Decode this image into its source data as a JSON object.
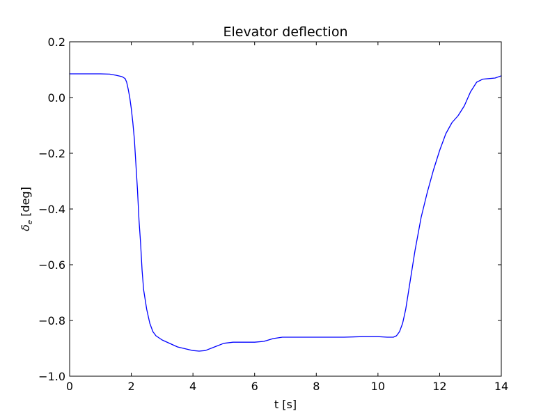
{
  "chart_data": {
    "type": "line",
    "title": "Elevator deflection",
    "xlabel": "t [s]",
    "ylabel_symbol": "δ",
    "ylabel_subscript": "e",
    "ylabel_unit": " [deg]",
    "xlim": [
      0,
      14
    ],
    "ylim": [
      -1.0,
      0.2
    ],
    "grid": false,
    "legend": "none",
    "x_ticks": [
      0,
      2,
      4,
      6,
      8,
      10,
      12,
      14
    ],
    "x_tick_labels": [
      "0",
      "2",
      "4",
      "6",
      "8",
      "10",
      "12",
      "14"
    ],
    "y_ticks": [
      -1.0,
      -0.8,
      -0.6,
      -0.4,
      -0.2,
      0.0,
      0.2
    ],
    "y_tick_labels": [
      "−1.0",
      "−0.8",
      "−0.6",
      "−0.4",
      "−0.2",
      "0.0",
      "0.2"
    ],
    "series": [
      {
        "color": "#0000ff",
        "x": [
          0,
          0.5,
          1.0,
          1.3,
          1.5,
          1.7,
          1.8,
          1.85,
          1.9,
          1.95,
          2.0,
          2.05,
          2.1,
          2.15,
          2.2,
          2.25,
          2.3,
          2.35,
          2.4,
          2.5,
          2.6,
          2.7,
          2.8,
          3.0,
          3.5,
          4.0,
          4.2,
          4.4,
          4.7,
          5.0,
          5.3,
          5.6,
          6.0,
          6.3,
          6.6,
          6.9,
          7.5,
          8.0,
          8.9,
          9.5,
          10.0,
          10.3,
          10.5,
          10.6,
          10.7,
          10.8,
          10.9,
          11.0,
          11.1,
          11.2,
          11.4,
          11.6,
          11.8,
          12.0,
          12.2,
          12.4,
          12.6,
          12.8,
          12.9,
          13.0,
          13.2,
          13.4,
          13.6,
          13.8,
          14.0
        ],
        "y": [
          0.085,
          0.085,
          0.085,
          0.084,
          0.08,
          0.075,
          0.068,
          0.055,
          0.03,
          0.0,
          -0.04,
          -0.09,
          -0.15,
          -0.24,
          -0.33,
          -0.44,
          -0.52,
          -0.62,
          -0.69,
          -0.76,
          -0.81,
          -0.84,
          -0.855,
          -0.87,
          -0.895,
          -0.908,
          -0.91,
          -0.908,
          -0.895,
          -0.882,
          -0.878,
          -0.878,
          -0.878,
          -0.875,
          -0.865,
          -0.86,
          -0.86,
          -0.86,
          -0.86,
          -0.858,
          -0.858,
          -0.86,
          -0.86,
          -0.855,
          -0.84,
          -0.81,
          -0.76,
          -0.69,
          -0.62,
          -0.55,
          -0.43,
          -0.34,
          -0.26,
          -0.19,
          -0.13,
          -0.09,
          -0.065,
          -0.03,
          -0.005,
          0.02,
          0.055,
          0.066,
          0.068,
          0.07,
          0.078
        ]
      }
    ]
  }
}
